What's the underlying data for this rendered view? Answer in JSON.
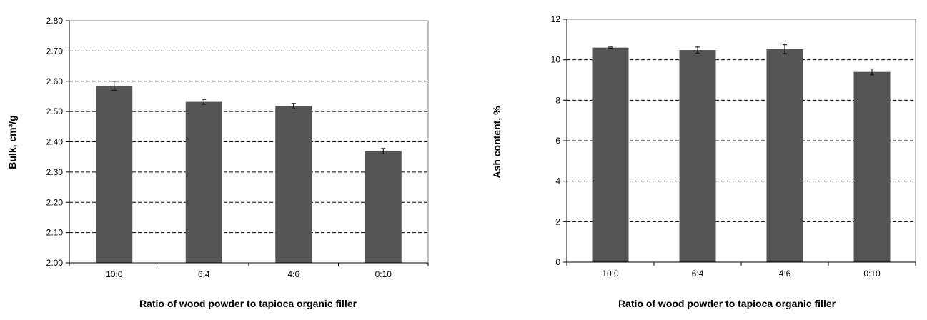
{
  "colors": {
    "bar": "#555555",
    "axis": "#000000",
    "grid": "#000000",
    "plot_border": "#7f7f7f"
  },
  "chart_data": [
    {
      "type": "bar",
      "title": "",
      "xlabel": "Ratio of wood powder to tapioca organic filler",
      "ylabel": "Bulk, cm³/g",
      "categories": [
        "10:0",
        "6:4",
        "4:6",
        "0:10"
      ],
      "values": [
        2.585,
        2.532,
        2.518,
        2.369
      ],
      "errors": [
        0.015,
        0.008,
        0.009,
        0.009
      ],
      "ylim": [
        2.0,
        2.8
      ],
      "yticks": [
        "2.00",
        "2.10",
        "2.20",
        "2.30",
        "2.40",
        "2.50",
        "2.60",
        "2.70",
        "2.80"
      ],
      "grid": "horizontal dashed"
    },
    {
      "type": "bar",
      "title": "",
      "xlabel": "Ratio of wood powder to tapioca organic filler",
      "ylabel": "Ash content, %",
      "categories": [
        "10:0",
        "6:4",
        "4:6",
        "0:10"
      ],
      "values": [
        10.6,
        10.48,
        10.52,
        9.4
      ],
      "errors": [
        0.03,
        0.15,
        0.22,
        0.15
      ],
      "ylim": [
        0,
        12
      ],
      "yticks": [
        "0",
        "2",
        "4",
        "6",
        "8",
        "10",
        "12"
      ],
      "grid": "horizontal dashed"
    }
  ]
}
